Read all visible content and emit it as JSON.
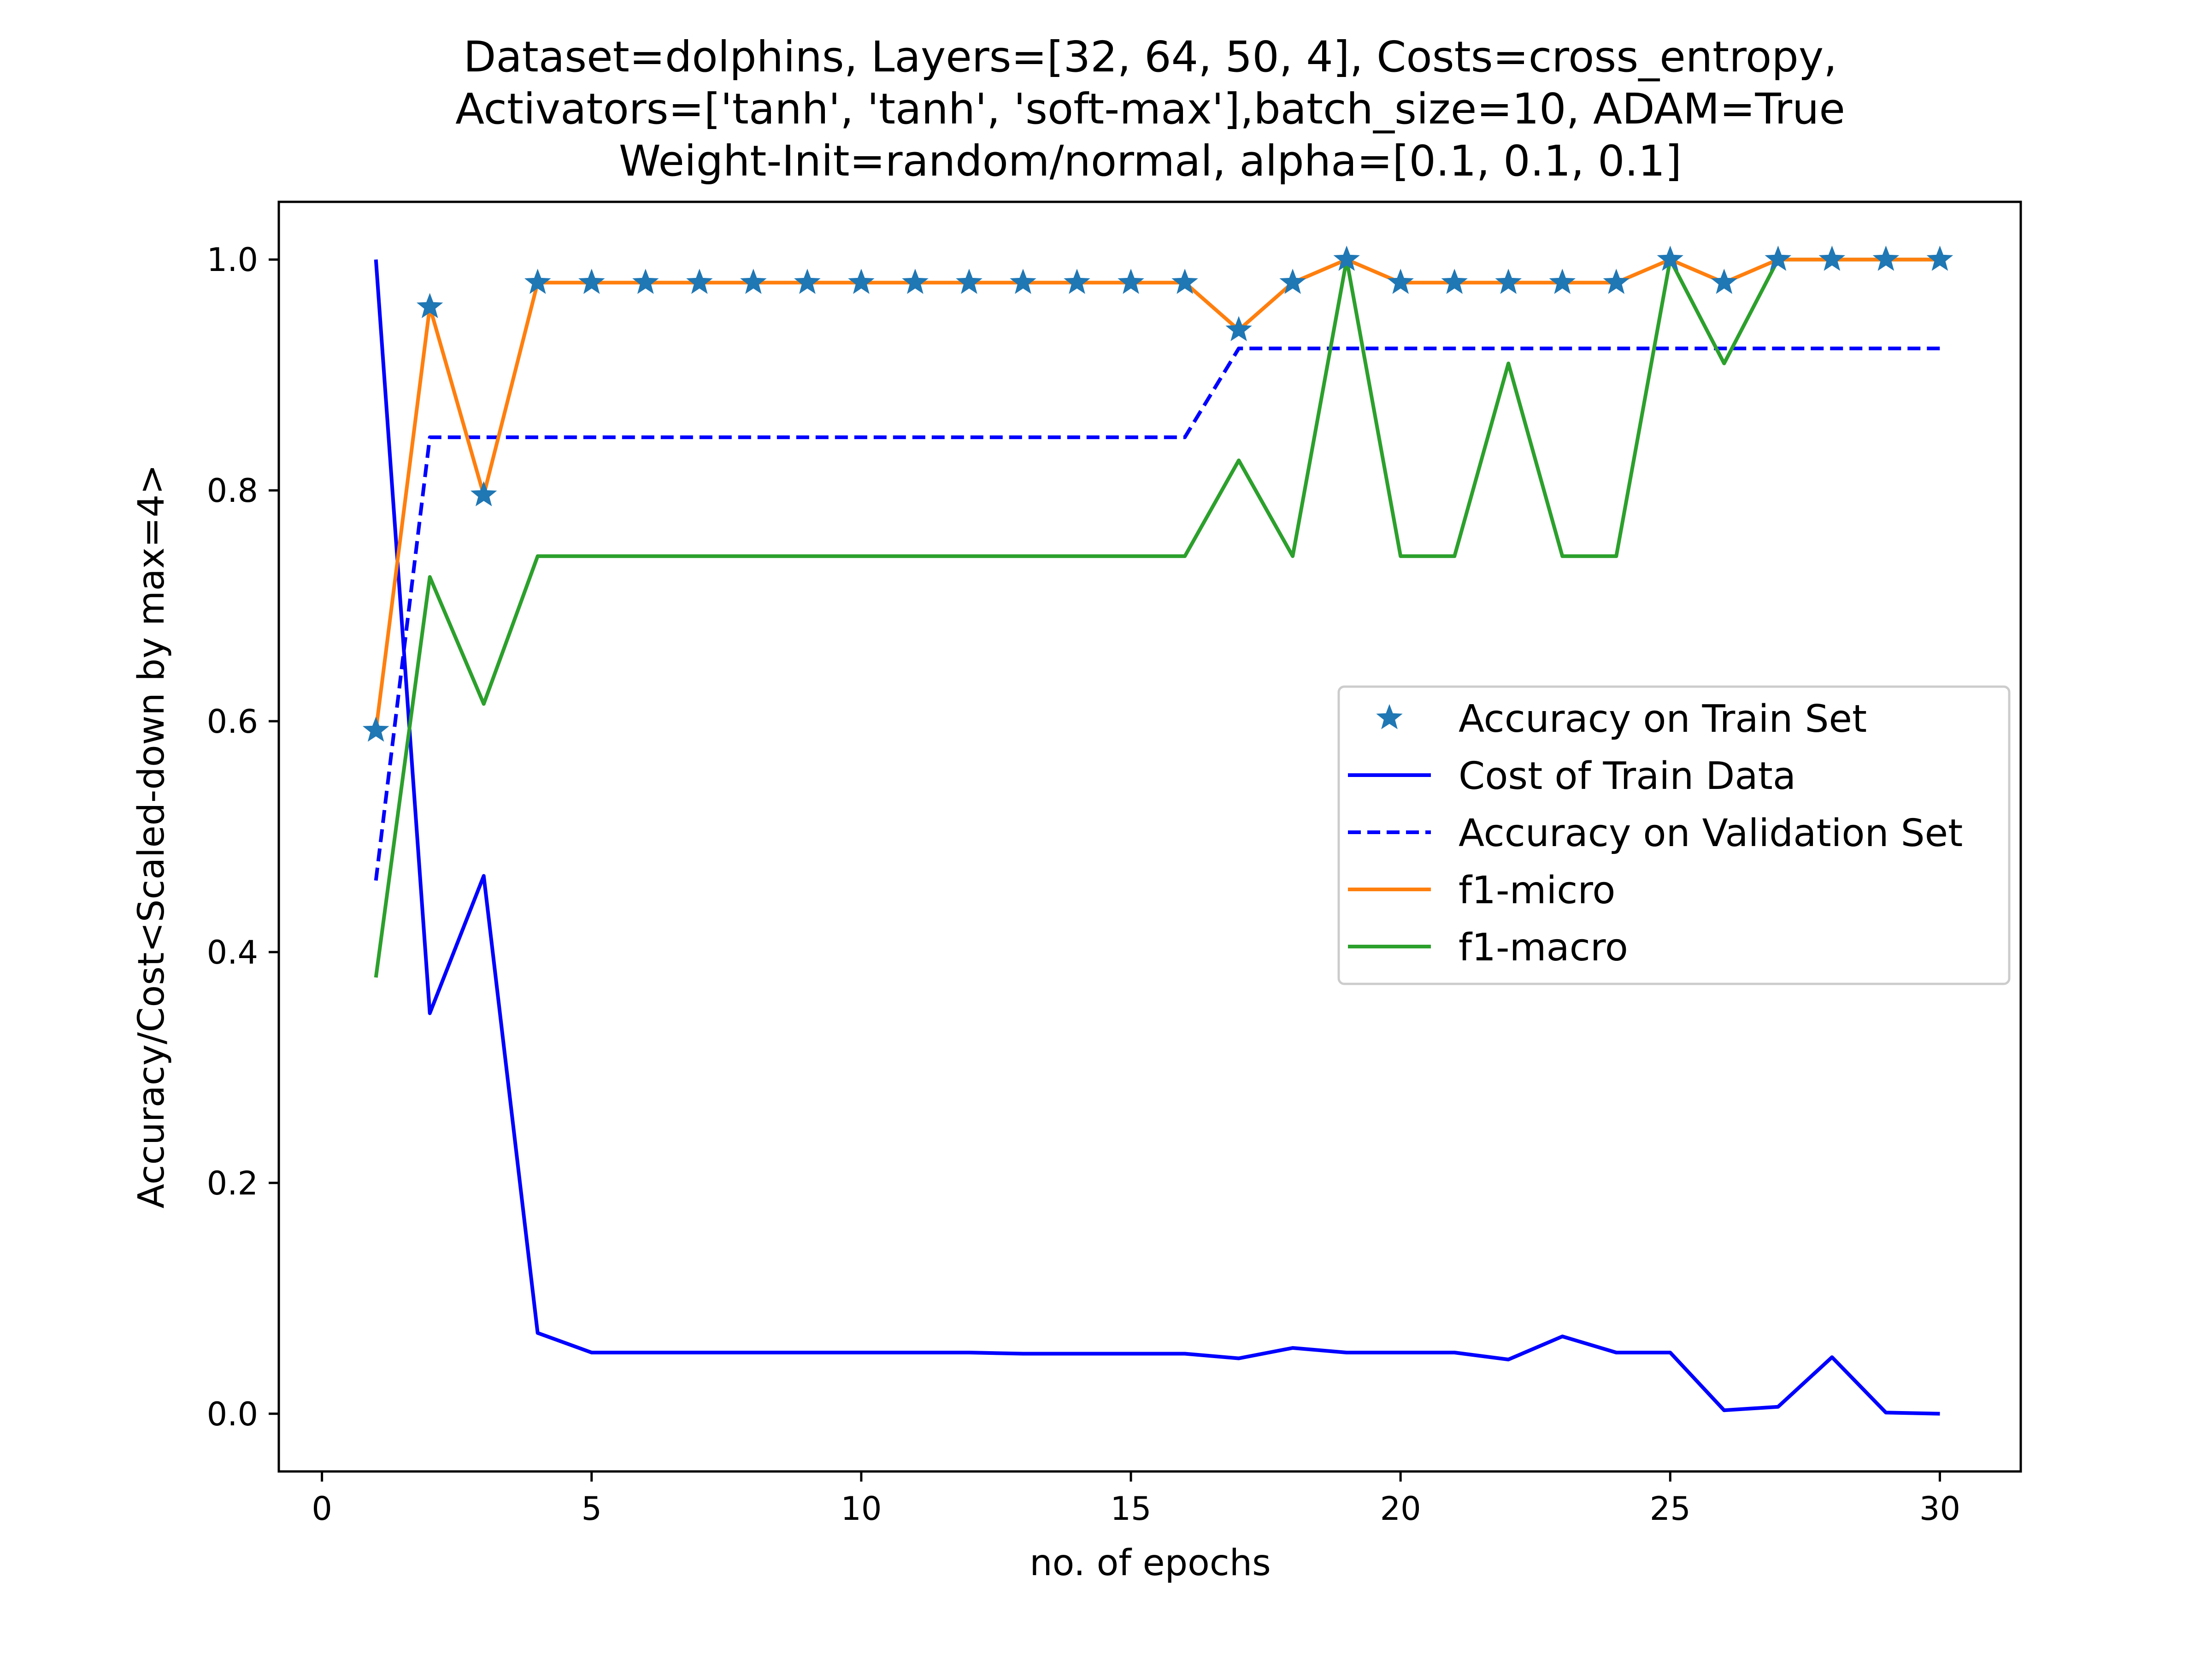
{
  "chart_data": {
    "type": "line",
    "title_lines": [
      "Dataset=dolphins, Layers=[32, 64, 50, 4], Costs=cross_entropy,",
      "Activators=['tanh', 'tanh', 'soft-max'],batch_size=10, ADAM=True",
      "Weight-Init=random/normal, alpha=[0.1, 0.1, 0.1]"
    ],
    "xlabel": "no. of epochs",
    "ylabel": "Accuracy/Cost<Scaled-down by max=4>",
    "xlim": [
      -0.8,
      31.5
    ],
    "ylim": [
      -0.05,
      1.05
    ],
    "xticks": [
      0,
      5,
      10,
      15,
      20,
      25,
      30
    ],
    "yticks": [
      0.0,
      0.2,
      0.4,
      0.6,
      0.8,
      1.0
    ],
    "xtick_labels": [
      "0",
      "5",
      "10",
      "15",
      "20",
      "25",
      "30"
    ],
    "ytick_labels": [
      "0.0",
      "0.2",
      "0.4",
      "0.6",
      "0.8",
      "1.0"
    ],
    "legend_position": "center-right",
    "x": [
      1,
      2,
      3,
      4,
      5,
      6,
      7,
      8,
      9,
      10,
      11,
      12,
      13,
      14,
      15,
      16,
      17,
      18,
      19,
      20,
      21,
      22,
      23,
      24,
      25,
      26,
      27,
      28,
      29,
      30
    ],
    "series": [
      {
        "name": "Accuracy on Train Set",
        "style": "marker-star",
        "color": "#1f77b4",
        "values": [
          0.592,
          0.959,
          0.796,
          0.98,
          0.98,
          0.98,
          0.98,
          0.98,
          0.98,
          0.98,
          0.98,
          0.98,
          0.98,
          0.98,
          0.98,
          0.98,
          0.939,
          0.98,
          1.0,
          0.98,
          0.98,
          0.98,
          0.98,
          0.98,
          1.0,
          0.98,
          1.0,
          1.0,
          1.0,
          1.0
        ]
      },
      {
        "name": "Cost of Train Data",
        "style": "solid",
        "color": "#0000ff",
        "values": [
          1.0,
          0.347,
          0.466,
          0.07,
          0.053,
          0.053,
          0.053,
          0.053,
          0.053,
          0.053,
          0.053,
          0.053,
          0.052,
          0.052,
          0.052,
          0.052,
          0.048,
          0.057,
          0.053,
          0.053,
          0.053,
          0.047,
          0.067,
          0.053,
          0.053,
          0.003,
          0.006,
          0.049,
          0.001,
          0.0
        ]
      },
      {
        "name": "Accuracy on Validation Set",
        "style": "dashed",
        "color": "#0000ff",
        "values": [
          0.462,
          0.846,
          0.846,
          0.846,
          0.846,
          0.846,
          0.846,
          0.846,
          0.846,
          0.846,
          0.846,
          0.846,
          0.846,
          0.846,
          0.846,
          0.846,
          0.923,
          0.923,
          0.923,
          0.923,
          0.923,
          0.923,
          0.923,
          0.923,
          0.923,
          0.923,
          0.923,
          0.923,
          0.923,
          0.923
        ]
      },
      {
        "name": "f1-micro",
        "style": "solid",
        "color": "#ff7f0e",
        "values": [
          0.592,
          0.959,
          0.796,
          0.98,
          0.98,
          0.98,
          0.98,
          0.98,
          0.98,
          0.98,
          0.98,
          0.98,
          0.98,
          0.98,
          0.98,
          0.98,
          0.939,
          0.98,
          1.0,
          0.98,
          0.98,
          0.98,
          0.98,
          0.98,
          1.0,
          0.98,
          1.0,
          1.0,
          1.0,
          1.0
        ]
      },
      {
        "name": "f1-macro",
        "style": "solid",
        "color": "#2ca02c",
        "values": [
          0.378,
          0.725,
          0.615,
          0.743,
          0.743,
          0.743,
          0.743,
          0.743,
          0.743,
          0.743,
          0.743,
          0.743,
          0.743,
          0.743,
          0.743,
          0.743,
          0.826,
          0.743,
          1.0,
          0.743,
          0.743,
          0.91,
          0.743,
          0.743,
          1.0,
          0.91,
          1.0,
          1.0,
          1.0,
          1.0
        ]
      }
    ]
  }
}
